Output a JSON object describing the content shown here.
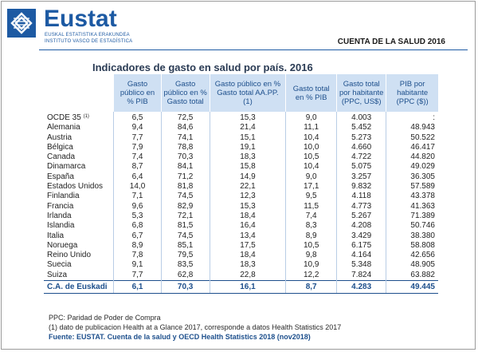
{
  "header": {
    "brand": "Eustat",
    "sub1": "EUSKAL ESTATISTIKA ERAKUNDEA",
    "sub2": "INSTITUTO VASCO DE ESTADÍSTICA",
    "report_title": "CUENTA DE LA SALUD 2016"
  },
  "title": "Indicadores de gasto en salud por país. 2016",
  "table": {
    "columns": [
      "",
      "Gasto público en % PIB",
      "Gasto público en % Gasto total",
      "Gasto público en % Gasto total AA.PP. (1)",
      "Gasto total en % PIB",
      "Gasto total por habitante (PPC, US$)",
      "PIB por habitante (PPC ($))"
    ],
    "rows": [
      [
        "OCDE 35",
        "6,5",
        "72,5",
        "15,3",
        "9,0",
        "4.003",
        ":"
      ],
      [
        "Alemania",
        "9,4",
        "84,6",
        "21,4",
        "11,1",
        "5.452",
        "48.943"
      ],
      [
        "Austria",
        "7,7",
        "74,1",
        "15,1",
        "10,4",
        "5.273",
        "50.522"
      ],
      [
        "Bélgica",
        "7,9",
        "78,8",
        "19,1",
        "10,0",
        "4.660",
        "46.417"
      ],
      [
        "Canada",
        "7,4",
        "70,3",
        "18,3",
        "10,5",
        "4.722",
        "44.820"
      ],
      [
        "Dinamarca",
        "8,7",
        "84,1",
        "15,8",
        "10,4",
        "5.075",
        "49.029"
      ],
      [
        "España",
        "6,4",
        "71,2",
        "14,9",
        "9,0",
        "3.257",
        "36.305"
      ],
      [
        "Estados Unidos",
        "14,0",
        "81,8",
        "22,1",
        "17,1",
        "9.832",
        "57.589"
      ],
      [
        "Finlandia",
        "7,1",
        "74,5",
        "12,3",
        "9,5",
        "4.118",
        "43.378"
      ],
      [
        "Francia",
        "9,6",
        "82,9",
        "15,3",
        "11,5",
        "4.773",
        "41.363"
      ],
      [
        "Irlanda",
        "5,3",
        "72,1",
        "18,4",
        "7,4",
        "5.267",
        "71.389"
      ],
      [
        "Islandia",
        "6,8",
        "81,5",
        "16,4",
        "8,3",
        "4.208",
        "50.746"
      ],
      [
        "Italia",
        "6,7",
        "74,5",
        "13,4",
        "8,9",
        "3.429",
        "38.380"
      ],
      [
        "Noruega",
        "8,9",
        "85,1",
        "17,5",
        "10,5",
        "6.175",
        "58.808"
      ],
      [
        "Reino Unido",
        "7,8",
        "79,5",
        "18,4",
        "9,8",
        "4.164",
        "42.656"
      ],
      [
        "Suecia",
        "9,1",
        "83,5",
        "18,3",
        "10,9",
        "5.348",
        "48.905"
      ],
      [
        "Suiza",
        "7,7",
        "62,8",
        "22,8",
        "12,2",
        "7.824",
        "63.882"
      ]
    ],
    "ocde_note_marker": "(1)",
    "total": [
      "C.A. de Euskadi",
      "6,1",
      "70,3",
      "16,1",
      "8,7",
      "4.283",
      "49.445"
    ]
  },
  "notes": {
    "ppc": "PPC: Paridad de Poder de Compra",
    "note1": "(1) dato de publicacion Health at a Glance 2017, corresponde a datos Health Statistics 2017",
    "source": "Fuente: EUSTAT. Cuenta de la salud y OECD Health Statistics 2018 (nov2018)"
  },
  "colors": {
    "brand_blue": "#1d5aa3",
    "header_bg": "#cfe0f3",
    "header_text": "#1d4f8c"
  },
  "icons": {
    "logo": "eustat-logo-icon"
  }
}
